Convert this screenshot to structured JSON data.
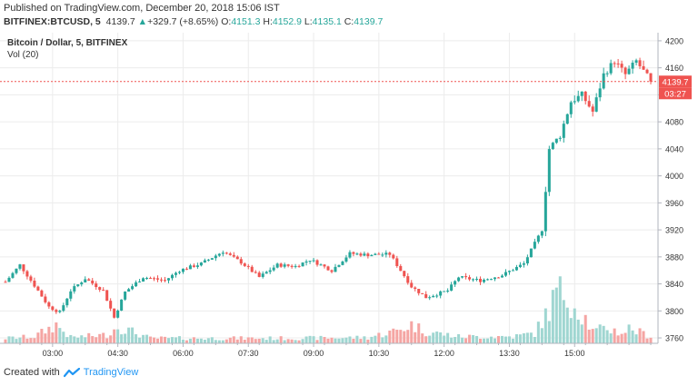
{
  "header": {
    "published": "Published on TradingView.com, December 20, 2018 15:06 IST",
    "symbol": "BITFINEX:BTCUSD, 5",
    "last": "4139.7",
    "change": "+329.7 (+8.65%)",
    "o_label": "O:",
    "o": "4151.3",
    "h_label": "H:",
    "h": "4152.9",
    "l_label": "L:",
    "l": "4135.1",
    "c_label": "C:",
    "c": "4139.7"
  },
  "chart_data": {
    "type": "candlestick",
    "title": "Bitcoin / Dollar, 5, BITFINEX",
    "indicator": "Vol (20)",
    "x_ticks": [
      "03:00",
      "04:30",
      "06:00",
      "07:30",
      "09:00",
      "10:30",
      "12:00",
      "13:30",
      "15:00"
    ],
    "y_ticks": [
      4200,
      4160,
      4120,
      4080,
      4040,
      4000,
      3960,
      3920,
      3880,
      3840,
      3800,
      3760
    ],
    "ylim": [
      3752,
      4212
    ],
    "last_price_label": "4139.7",
    "countdown_label": "03:27",
    "colors": {
      "up": "#26a69a",
      "down": "#ef5350",
      "vol_up": "#9fd6d1",
      "vol_down": "#f5a5a3",
      "grid": "#ececec"
    },
    "hourly_path": [
      [
        0,
        3843
      ],
      [
        4,
        3868
      ],
      [
        9,
        3830
      ],
      [
        12,
        3806
      ],
      [
        15,
        3798
      ],
      [
        18,
        3830
      ],
      [
        22,
        3848
      ],
      [
        27,
        3830
      ],
      [
        30,
        3790
      ],
      [
        33,
        3828
      ],
      [
        38,
        3850
      ],
      [
        44,
        3845
      ],
      [
        48,
        3860
      ],
      [
        54,
        3870
      ],
      [
        60,
        3888
      ],
      [
        65,
        3872
      ],
      [
        70,
        3850
      ],
      [
        75,
        3868
      ],
      [
        80,
        3866
      ],
      [
        84,
        3876
      ],
      [
        90,
        3860
      ],
      [
        95,
        3885
      ],
      [
        100,
        3883
      ],
      [
        106,
        3884
      ],
      [
        112,
        3836
      ],
      [
        116,
        3820
      ],
      [
        122,
        3830
      ],
      [
        125,
        3850
      ],
      [
        131,
        3845
      ],
      [
        137,
        3853
      ],
      [
        143,
        3870
      ],
      [
        148,
        3920
      ],
      [
        150,
        4040
      ],
      [
        153,
        4060
      ],
      [
        156,
        4110
      ],
      [
        159,
        4120
      ],
      [
        162,
        4095
      ],
      [
        165,
        4150
      ],
      [
        168,
        4170
      ],
      [
        171,
        4150
      ],
      [
        174,
        4170
      ],
      [
        178,
        4139.7
      ]
    ],
    "volume_profile": [
      [
        0,
        6
      ],
      [
        8,
        8
      ],
      [
        14,
        22
      ],
      [
        18,
        7
      ],
      [
        28,
        10
      ],
      [
        31,
        20
      ],
      [
        40,
        6
      ],
      [
        60,
        6
      ],
      [
        80,
        6
      ],
      [
        100,
        7
      ],
      [
        108,
        15
      ],
      [
        112,
        22
      ],
      [
        116,
        14
      ],
      [
        125,
        8
      ],
      [
        140,
        8
      ],
      [
        146,
        12
      ],
      [
        150,
        40
      ],
      [
        152,
        60
      ],
      [
        155,
        58
      ],
      [
        157,
        45
      ],
      [
        160,
        30
      ],
      [
        162,
        14
      ],
      [
        166,
        18
      ],
      [
        170,
        12
      ],
      [
        172,
        18
      ],
      [
        178,
        8
      ]
    ]
  },
  "footer": {
    "created_with": "Created with",
    "brand": "TradingView"
  }
}
